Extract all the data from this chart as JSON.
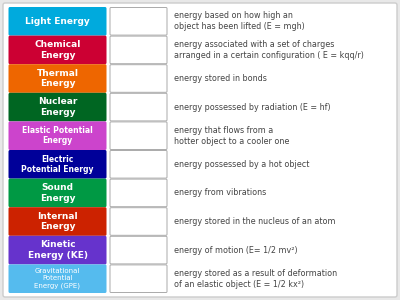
{
  "bg_color": "#e8e8e8",
  "items": [
    {
      "label": "Light Energy",
      "color": "#00aadd",
      "text_lines": [
        "energy based on how high an",
        "object has been lifted (E = mgh)"
      ],
      "label_fontsize": 6.5,
      "bold": true,
      "label_lines": 1
    },
    {
      "label": "Chemical\nEnergy",
      "color": "#cc0033",
      "text_lines": [
        "energy associated with a set of charges",
        "arranged in a certain configuration ( E = kqq/r)"
      ],
      "label_fontsize": 6.5,
      "bold": true,
      "label_lines": 2
    },
    {
      "label": "Thermal\nEnergy",
      "color": "#ee6600",
      "text_lines": [
        "energy stored in bonds"
      ],
      "label_fontsize": 6.5,
      "bold": true,
      "label_lines": 2
    },
    {
      "label": "Nuclear\nEnergy",
      "color": "#006622",
      "text_lines": [
        "energy possessed by radiation (E = hf)"
      ],
      "label_fontsize": 6.5,
      "bold": true,
      "label_lines": 2
    },
    {
      "label": "Elastic Potential\nEnergy",
      "color": "#cc44cc",
      "text_lines": [
        "energy that flows from a",
        "hotter object to a cooler one"
      ],
      "label_fontsize": 5.5,
      "bold": true,
      "label_lines": 2
    },
    {
      "label": "Electric\nPotential Energy",
      "color": "#000099",
      "text_lines": [
        "energy possessed by a hot object"
      ],
      "label_fontsize": 5.5,
      "bold": true,
      "label_lines": 2
    },
    {
      "label": "Sound\nEnergy",
      "color": "#009944",
      "text_lines": [
        "energy from vibrations"
      ],
      "label_fontsize": 6.5,
      "bold": true,
      "label_lines": 2
    },
    {
      "label": "Internal\nEnergy",
      "color": "#cc2200",
      "text_lines": [
        "energy stored in the nucleus of an atom"
      ],
      "label_fontsize": 6.5,
      "bold": true,
      "label_lines": 2
    },
    {
      "label": "Kinetic\nEnergy (KE)",
      "color": "#6633cc",
      "text_lines": [
        "energy of motion (E= 1/2 mv²)"
      ],
      "label_fontsize": 6.5,
      "bold": true,
      "label_lines": 2
    },
    {
      "label": "Gravitational\nPotential\nEnergy (GPE)",
      "color": "#55bbee",
      "text_lines": [
        "energy stored as a result of deformation",
        "of an elastic object (E = 1/2 kx²)"
      ],
      "label_fontsize": 5.0,
      "bold": false,
      "label_lines": 3
    }
  ],
  "label_font_color": "#ffffff",
  "desc_font_color": "#444444",
  "desc_fontsize": 5.8
}
